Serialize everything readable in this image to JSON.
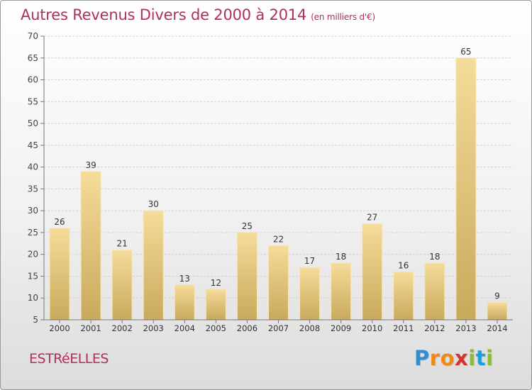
{
  "title": "Autres Revenus Divers de 2000 à 2014",
  "subtitle": "(en milliers d'€)",
  "town": "ESTRéELLES",
  "logo": {
    "letters": [
      "P",
      "r",
      "o",
      "x",
      "i",
      "t",
      "i"
    ],
    "colors": [
      "#2e8fd6",
      "#ef8a1a",
      "#ef8a1a",
      "#d9322a",
      "#8bbd2f",
      "#1aa0d8",
      "#8bbd2f"
    ]
  },
  "colors": {
    "title": "#b0305b",
    "bar_top": "#f5dc9a",
    "bar_bottom": "#c9a95c"
  },
  "chart_data": {
    "type": "bar",
    "title": "Autres Revenus Divers de 2000 à 2014",
    "categories": [
      "2000",
      "2001",
      "2002",
      "2003",
      "2004",
      "2005",
      "2006",
      "2007",
      "2008",
      "2009",
      "2010",
      "2011",
      "2012",
      "2013",
      "2014"
    ],
    "values": [
      26,
      39,
      21,
      30,
      13,
      12,
      25,
      22,
      17,
      18,
      27,
      16,
      18,
      65,
      9
    ],
    "ylim": [
      5,
      70
    ],
    "yticks": [
      5,
      10,
      15,
      20,
      25,
      30,
      35,
      40,
      45,
      50,
      55,
      60,
      65,
      70
    ],
    "grid": true,
    "xlabel": "",
    "ylabel": ""
  }
}
